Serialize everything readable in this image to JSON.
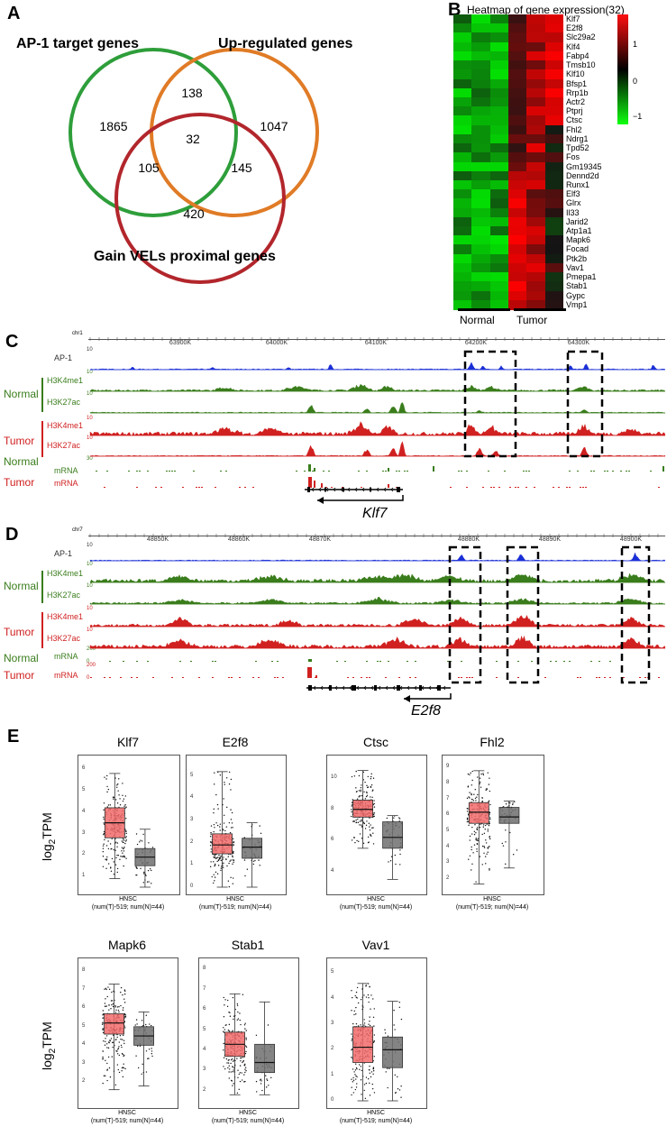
{
  "panels": {
    "A": "A",
    "B": "B",
    "C": "C",
    "D": "D",
    "E": "E"
  },
  "venn": {
    "ap1_label": "AP-1 target genes",
    "up_label": "Up-regulated genes",
    "gain_label": "Gain VELs proximal genes",
    "ap1_only": "1865",
    "ap1_up": "138",
    "up_only": "1047",
    "all_three": "32",
    "ap1_gain": "105",
    "up_gain": "145",
    "gain_only": "420",
    "colors": {
      "ap1": "#2e9e3a",
      "up": "#e07b26",
      "gain": "#b2262c"
    }
  },
  "heatmap": {
    "title": "Heatmap of  gene expression(32)",
    "genes": [
      "Klf7",
      "E2f8",
      "Slc29a2",
      "Klf4",
      "Fabp4",
      "Tmsb10",
      "Klf10",
      "Bfsp1",
      "Rrp1b",
      "Actr2",
      "Ptprj",
      "Ctsc",
      "Fhl2",
      "Ndrg1",
      "Tpd52",
      "Fos",
      "Gm19345",
      "Dennd2d",
      "Runx1",
      "Elf3",
      "Glrx",
      "Il33",
      "Jarid2",
      "Atp1a1",
      "Mapk6",
      "Focad",
      "Ptk2b",
      "Vav1",
      "Pmepa1",
      "Stab1",
      "Gypc",
      "Vmp1"
    ],
    "scale_labels": [
      "1",
      "0",
      "−1"
    ],
    "group_normal": "Normal",
    "group_tumor": "Tumor"
  },
  "tracks_c": {
    "chrom": "chr1",
    "coords": [
      "63900K",
      "64000K",
      "64100K",
      "64200K",
      "64300K"
    ],
    "ap1": "AP-1",
    "ap1_scale": "10",
    "h3k4me1": "H3K4me1",
    "h3k27ac": "H3K27ac",
    "mrna": "mRNA",
    "normal": "Normal",
    "tumor": "Tumor",
    "scale_10": "10",
    "scale_30": "30",
    "scale_0": "0",
    "gene": "Klf7"
  },
  "tracks_d": {
    "chrom": "chr7",
    "coords": [
      "48850K",
      "48860K",
      "48870K",
      "48880K",
      "48890K",
      "48900K"
    ],
    "ap1": "AP-1",
    "h3k4me1": "H3K4me1",
    "h3k27ac": "H3K27ac",
    "mrna": "mRNA",
    "normal": "Normal",
    "tumor": "Tumor",
    "scale_10": "10",
    "scale_200": "200",
    "scale_0": "0",
    "gene": "E2f8"
  },
  "boxplots": {
    "ylabel_main": "log",
    "ylabel_sub": "2",
    "ylabel_end": "TPM",
    "caption_line1": "HNSC",
    "caption_line2": "(num(T)-519; num(N)=44)",
    "items": [
      {
        "title": "Klf7",
        "ticks": [
          "6",
          "5",
          "4",
          "3",
          "2",
          "1"
        ],
        "tumor": [
          0.9,
          2.8,
          3.5,
          4.2,
          5.8
        ],
        "normal": [
          0.5,
          1.5,
          1.9,
          2.3,
          3.2
        ],
        "ymin": 0.5,
        "ymax": 6.3
      },
      {
        "title": "E2f8",
        "ticks": [
          "5",
          "4",
          "3",
          "2",
          "1",
          "0"
        ],
        "tumor": [
          0.0,
          1.5,
          1.9,
          2.4,
          5.2
        ],
        "normal": [
          0.0,
          1.3,
          1.8,
          2.2,
          2.9
        ],
        "ymin": 0,
        "ymax": 5.6
      },
      {
        "title": "Ctsc",
        "ticks": [
          "10",
          "8",
          "6",
          "4"
        ],
        "tumor": [
          5.5,
          7.5,
          8.0,
          8.6,
          10.5
        ],
        "normal": [
          3.5,
          5.5,
          6.2,
          7.2,
          7.6
        ],
        "ymin": 3,
        "ymax": 11
      },
      {
        "title": "Fhl2",
        "ticks": [
          "9",
          "8",
          "7",
          "6",
          "5",
          "4",
          "3",
          "2"
        ],
        "tumor": [
          1.7,
          5.5,
          6.2,
          6.8,
          8.8
        ],
        "normal": [
          2.7,
          5.5,
          5.9,
          6.5,
          6.9
        ],
        "ymin": 1.5,
        "ymax": 9.3
      },
      {
        "title": "Mapk6",
        "ticks": [
          "8",
          "7",
          "6",
          "5",
          "4",
          "3",
          "2"
        ],
        "tumor": [
          1.6,
          4.6,
          5.2,
          5.7,
          7.3
        ],
        "normal": [
          1.8,
          4.0,
          4.5,
          5.0,
          5.8
        ],
        "ymin": 1,
        "ymax": 8.3
      },
      {
        "title": "Stab1",
        "ticks": [
          "8",
          "7",
          "6",
          "5",
          "4",
          "3",
          "2"
        ],
        "tumor": [
          1.8,
          3.7,
          4.3,
          4.9,
          6.8
        ],
        "normal": [
          1.8,
          2.9,
          3.4,
          4.3,
          6.4
        ],
        "ymin": 1.5,
        "ymax": 8.2
      },
      {
        "title": "Vav1",
        "ticks": [
          "5",
          "4",
          "3",
          "2",
          "1",
          "0"
        ],
        "tumor": [
          0.0,
          1.5,
          2.1,
          2.9,
          4.6
        ],
        "normal": [
          0.0,
          1.3,
          2.0,
          2.5,
          3.9
        ],
        "ymin": 0,
        "ymax": 5.3
      }
    ]
  }
}
